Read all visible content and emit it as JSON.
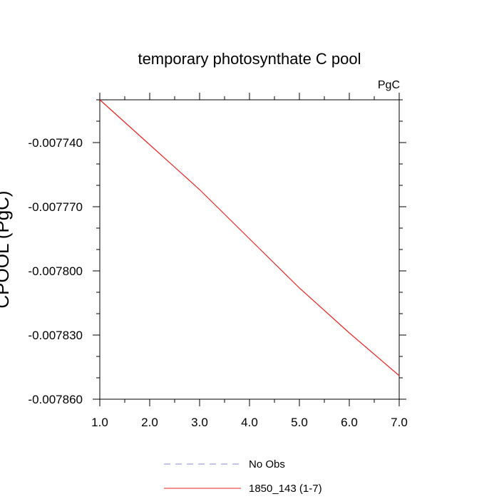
{
  "chart_data": {
    "type": "line",
    "title": "temporary photosynthate C pool",
    "units_label": "PgC",
    "xlabel": "",
    "ylabel": "CPOOL (PgC)",
    "xlim": [
      1.0,
      7.0
    ],
    "ylim": [
      -0.00786,
      -0.00772
    ],
    "x_ticks": [
      1.0,
      2.0,
      3.0,
      4.0,
      5.0,
      6.0,
      7.0
    ],
    "x_tick_labels": [
      "1.0",
      "2.0",
      "3.0",
      "4.0",
      "5.0",
      "6.0",
      "7.0"
    ],
    "y_ticks": [
      -0.00774,
      -0.00777,
      -0.0078,
      -0.00783,
      -0.00786
    ],
    "y_tick_labels": [
      "-0.007740",
      "-0.007770",
      "-0.007800",
      "-0.007830",
      "-0.007860"
    ],
    "grid": false,
    "legend": {
      "position": "bottom-center",
      "entries": [
        {
          "label": "No Obs",
          "color": "#8a8ae6",
          "style": "dashed"
        },
        {
          "label": "1850_143 (1-7)",
          "color": "#e8231f",
          "style": "solid"
        }
      ]
    },
    "series": [
      {
        "name": "1850_143 (1-7)",
        "color": "#e8231f",
        "x": [
          1.0,
          2.0,
          3.0,
          4.0,
          5.0,
          6.0,
          7.0
        ],
        "y": [
          -0.00772,
          -0.007741,
          -0.007762,
          -0.007785,
          -0.007808,
          -0.007829,
          -0.007849
        ]
      }
    ]
  }
}
